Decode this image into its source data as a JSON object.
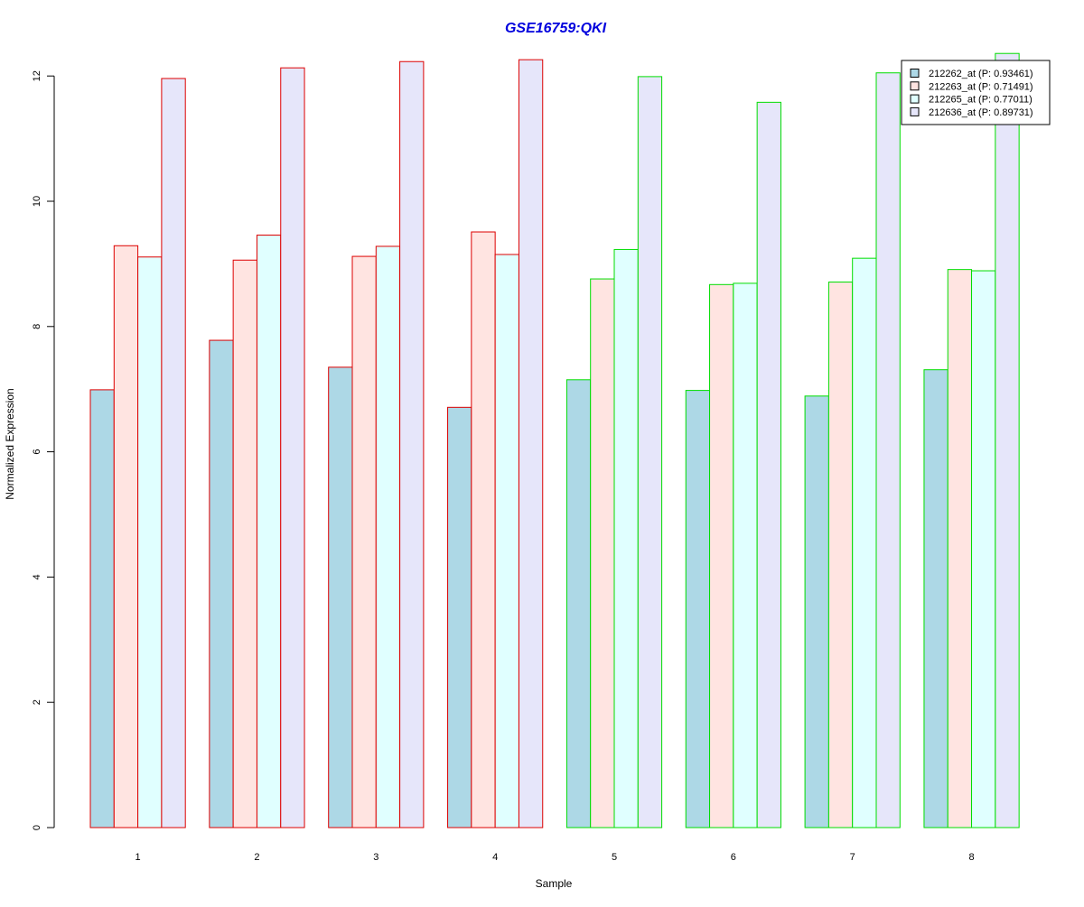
{
  "chart_data": {
    "type": "bar",
    "title": "GSE16759:QKI",
    "xlabel": "Sample",
    "ylabel": "Normalized Expression",
    "categories": [
      "1",
      "2",
      "3",
      "4",
      "5",
      "6",
      "7",
      "8"
    ],
    "ylim": [
      0,
      12.3
    ],
    "yticks": [
      "0",
      "2",
      "4",
      "6",
      "8",
      "10",
      "12"
    ],
    "group_border_colors": [
      "#dd0000",
      "#dd0000",
      "#dd0000",
      "#dd0000",
      "#00dd00",
      "#00dd00",
      "#00dd00",
      "#00dd00"
    ],
    "series": [
      {
        "name": "212262_at (P: 0.93461)",
        "color": "#add8e6",
        "values": [
          6.99,
          7.78,
          7.35,
          6.71,
          7.15,
          6.98,
          6.89,
          7.31
        ]
      },
      {
        "name": "212263_at (P: 0.71491)",
        "color": "#ffe4e1",
        "values": [
          9.29,
          9.06,
          9.12,
          9.51,
          8.76,
          8.67,
          8.71,
          8.91
        ]
      },
      {
        "name": "212265_at (P: 0.77011)",
        "color": "#e0ffff",
        "values": [
          9.11,
          9.46,
          9.28,
          9.15,
          9.23,
          8.69,
          9.09,
          8.89
        ]
      },
      {
        "name": "212636_at (P: 0.89731)",
        "color": "#e6e6fa",
        "values": [
          11.96,
          12.13,
          12.23,
          12.26,
          11.99,
          11.58,
          12.05,
          12.36
        ]
      }
    ],
    "legend_position": "top-right",
    "grid": false
  }
}
